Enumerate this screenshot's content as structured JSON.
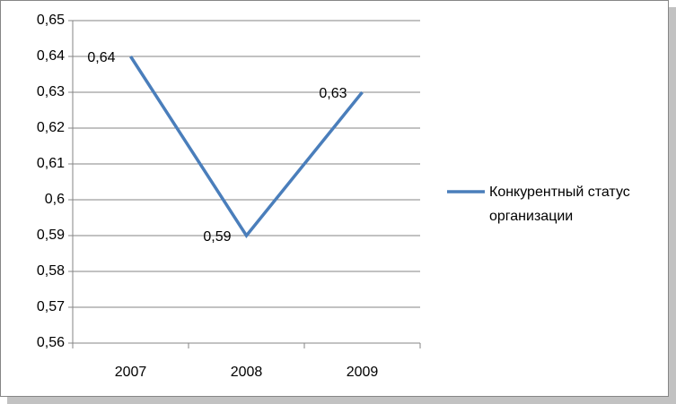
{
  "chart_data": {
    "type": "line",
    "categories": [
      "2007",
      "2008",
      "2009"
    ],
    "series": [
      {
        "name": "Конкурентный статус организации",
        "color": "#4a7ebb",
        "values": [
          0.64,
          0.59,
          0.63
        ],
        "value_labels": [
          "0,64",
          "0,59",
          "0,63"
        ]
      }
    ],
    "ylim": [
      0.56,
      0.65
    ],
    "yticks": [
      {
        "value": 0.56,
        "label": "0,56"
      },
      {
        "value": 0.57,
        "label": "0,57"
      },
      {
        "value": 0.58,
        "label": "0,58"
      },
      {
        "value": 0.59,
        "label": "0,59"
      },
      {
        "value": 0.6,
        "label": "0,6"
      },
      {
        "value": 0.61,
        "label": "0,61"
      },
      {
        "value": 0.62,
        "label": "0,62"
      },
      {
        "value": 0.63,
        "label": "0,63"
      },
      {
        "value": 0.64,
        "label": "0,64"
      },
      {
        "value": 0.65,
        "label": "0,65"
      }
    ],
    "grid": true,
    "legend": "right"
  }
}
